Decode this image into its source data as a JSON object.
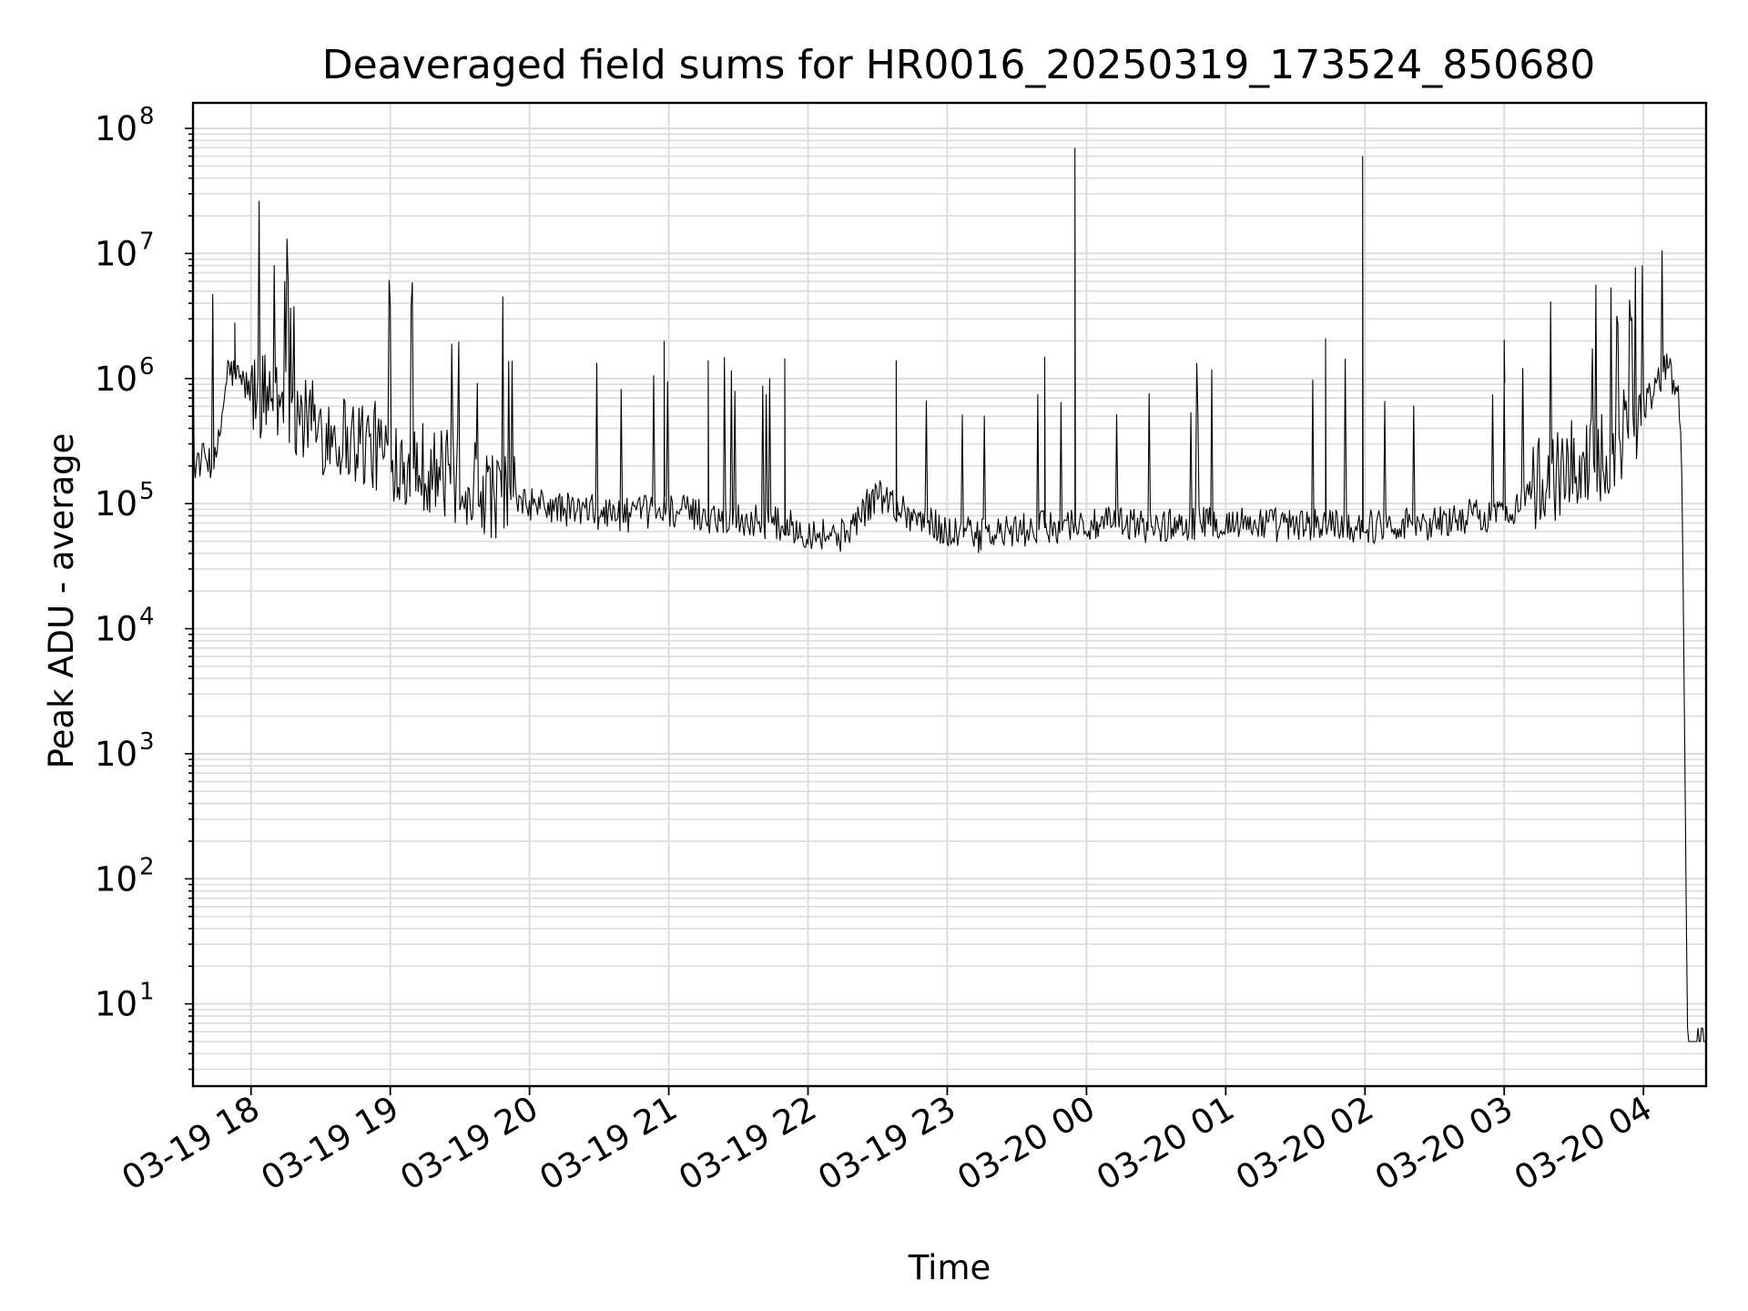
{
  "chart_data": {
    "type": "line",
    "title": "Deaveraged field sums for HR0016_20250319_173524_850680",
    "xlabel": "Time",
    "ylabel": "Peak ADU - average",
    "yscale": "log",
    "ylim": [
      2.2,
      160000000
    ],
    "xlim": [
      "2025-03-19 17:35",
      "2025-03-20 04:27"
    ],
    "grid": true,
    "line_color": "#000000",
    "grid_color": "#dcdcdc",
    "x_ticks": [
      "03-19 18",
      "03-19 19",
      "03-19 20",
      "03-19 21",
      "03-19 22",
      "03-19 23",
      "03-20 00",
      "03-20 01",
      "03-20 02",
      "03-20 03",
      "03-20 04"
    ],
    "y_ticks": [
      {
        "base": "10",
        "exp": "1"
      },
      {
        "base": "10",
        "exp": "2"
      },
      {
        "base": "10",
        "exp": "3"
      },
      {
        "base": "10",
        "exp": "4"
      },
      {
        "base": "10",
        "exp": "5"
      },
      {
        "base": "10",
        "exp": "6"
      },
      {
        "base": "10",
        "exp": "7"
      },
      {
        "base": "10",
        "exp": "8"
      }
    ],
    "series": [
      {
        "x": [
          "2025-03-19 17:35",
          "2025-03-19 17:40",
          "2025-03-19 17:45",
          "2025-03-19 17:50",
          "2025-03-19 17:55",
          "2025-03-19 18:00",
          "2025-03-19 18:10",
          "2025-03-19 18:20",
          "2025-03-19 18:30",
          "2025-03-19 18:40",
          "2025-03-19 18:50",
          "2025-03-19 19:00",
          "2025-03-19 19:15",
          "2025-03-19 19:30",
          "2025-03-19 19:45",
          "2025-03-19 20:00",
          "2025-03-19 20:15",
          "2025-03-19 20:30",
          "2025-03-19 20:45",
          "2025-03-19 20:55",
          "2025-03-19 21:00",
          "2025-03-19 21:15",
          "2025-03-19 21:30",
          "2025-03-19 21:45",
          "2025-03-19 22:00",
          "2025-03-19 22:15",
          "2025-03-19 22:30",
          "2025-03-19 22:45",
          "2025-03-19 23:00",
          "2025-03-19 23:15",
          "2025-03-19 23:30",
          "2025-03-19 23:45",
          "2025-03-19 23:55",
          "2025-03-20 00:00",
          "2025-03-20 00:15",
          "2025-03-20 00:30",
          "2025-03-20 00:45",
          "2025-03-20 01:00",
          "2025-03-20 01:15",
          "2025-03-20 01:30",
          "2025-03-20 01:45",
          "2025-03-20 02:00",
          "2025-03-20 02:15",
          "2025-03-20 02:30",
          "2025-03-20 02:45",
          "2025-03-20 03:00",
          "2025-03-20 03:15",
          "2025-03-20 03:30",
          "2025-03-20 03:45",
          "2025-03-20 04:00",
          "2025-03-20 04:10",
          "2025-03-20 04:15",
          "2025-03-20 04:18",
          "2025-03-20 04:20",
          "2025-03-20 04:27"
        ],
        "y": [
          200000,
          230000,
          210000,
          1200000,
          1000000,
          800000,
          700000,
          500000,
          400000,
          350000,
          300000,
          250000,
          200000,
          150000,
          120000,
          100000,
          90000,
          85000,
          80000,
          90000,
          90000,
          80000,
          75000,
          70000,
          60000,
          55000,
          120000,
          80000,
          60000,
          55000,
          60000,
          65000,
          70000,
          65000,
          70000,
          65000,
          70000,
          70000,
          70000,
          65000,
          70000,
          65000,
          70000,
          70000,
          80000,
          80000,
          150000,
          200000,
          250000,
          600000,
          1200000,
          800000,
          35000,
          5,
          5
        ]
      }
    ],
    "spikes": [
      {
        "x": "2025-03-19 17:53",
        "y": 2800000
      },
      {
        "x": "2025-03-19 20:58",
        "y": 2000000
      },
      {
        "x": "2025-03-19 21:17",
        "y": 1400000
      },
      {
        "x": "2025-03-19 21:50",
        "y": 1450000
      },
      {
        "x": "2025-03-19 22:38",
        "y": 1400000
      },
      {
        "x": "2025-03-19 23:42",
        "y": 1500000
      },
      {
        "x": "2025-03-19 23:55",
        "y": 70000000
      },
      {
        "x": "2025-03-20 01:43",
        "y": 2100000
      },
      {
        "x": "2025-03-20 01:59",
        "y": 60000000
      },
      {
        "x": "2025-03-20 03:00",
        "y": 2050000
      }
    ]
  }
}
